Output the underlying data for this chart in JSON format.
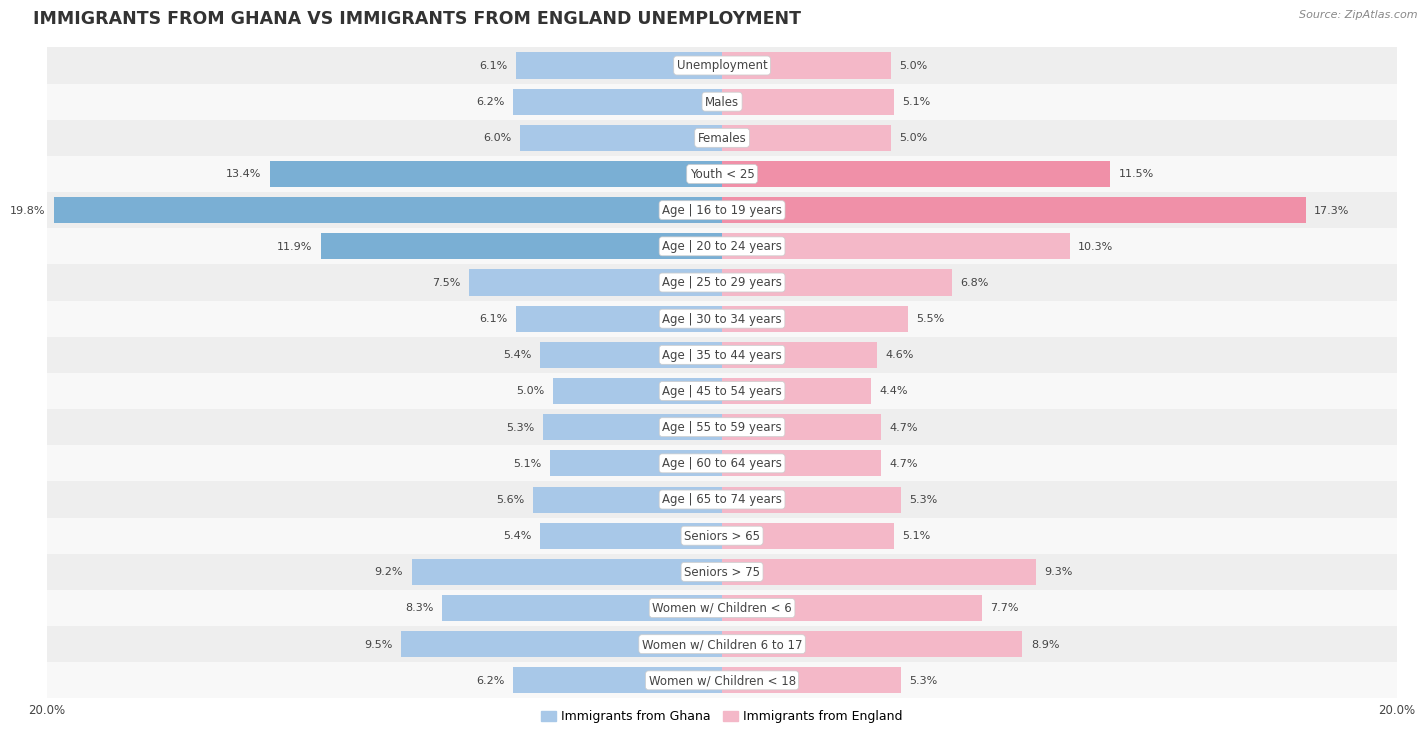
{
  "title": "IMMIGRANTS FROM GHANA VS IMMIGRANTS FROM ENGLAND UNEMPLOYMENT",
  "source": "Source: ZipAtlas.com",
  "categories": [
    "Unemployment",
    "Males",
    "Females",
    "Youth < 25",
    "Age | 16 to 19 years",
    "Age | 20 to 24 years",
    "Age | 25 to 29 years",
    "Age | 30 to 34 years",
    "Age | 35 to 44 years",
    "Age | 45 to 54 years",
    "Age | 55 to 59 years",
    "Age | 60 to 64 years",
    "Age | 65 to 74 years",
    "Seniors > 65",
    "Seniors > 75",
    "Women w/ Children < 6",
    "Women w/ Children 6 to 17",
    "Women w/ Children < 18"
  ],
  "ghana_values": [
    6.1,
    6.2,
    6.0,
    13.4,
    19.8,
    11.9,
    7.5,
    6.1,
    5.4,
    5.0,
    5.3,
    5.1,
    5.6,
    5.4,
    9.2,
    8.3,
    9.5,
    6.2
  ],
  "england_values": [
    5.0,
    5.1,
    5.0,
    11.5,
    17.3,
    10.3,
    6.8,
    5.5,
    4.6,
    4.4,
    4.7,
    4.7,
    5.3,
    5.1,
    9.3,
    7.7,
    8.9,
    5.3
  ],
  "ghana_color_normal": "#a8c8e8",
  "ghana_color_highlight": "#7aafd4",
  "england_color_normal": "#f4b8c8",
  "england_color_highlight": "#f090a8",
  "row_bg_even": "#eeeeee",
  "row_bg_odd": "#f8f8f8",
  "axis_max": 20.0,
  "legend_ghana": "Immigrants from Ghana",
  "legend_england": "Immigrants from England",
  "title_fontsize": 12.5,
  "source_fontsize": 8,
  "label_fontsize": 8.5,
  "value_fontsize": 8,
  "axis_label_fontsize": 8.5,
  "highlight_threshold": 11.0
}
